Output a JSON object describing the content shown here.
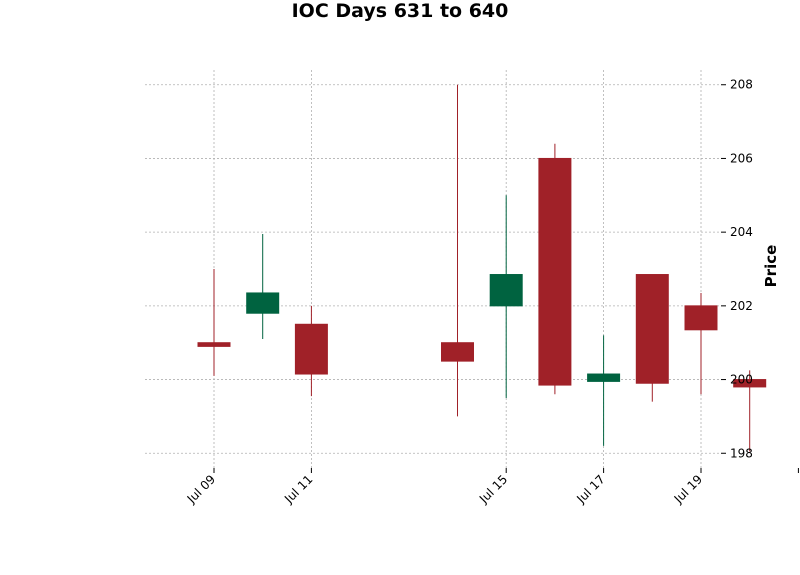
{
  "chart_data": {
    "type": "candlestick",
    "title": "IOC Days 631 to 640",
    "xlabel": "",
    "ylabel": "Price",
    "ylim": [
      197.6,
      208.4
    ],
    "y_ticks": [
      198,
      200,
      202,
      204,
      206,
      208
    ],
    "x_ticks": [
      {
        "label": "Jul 09",
        "date": "2023-07-09"
      },
      {
        "label": "Jul 11",
        "date": "2023-07-11"
      },
      {
        "label": "Jul 15",
        "date": "2023-07-15"
      },
      {
        "label": "Jul 17",
        "date": "2023-07-17"
      },
      {
        "label": "Jul 19",
        "date": "2023-07-19"
      },
      {
        "label": "",
        "date": "2023-07-21"
      }
    ],
    "grid": true,
    "y_axis_side": "right",
    "up_color": "#006340",
    "down_color": "#a02128",
    "grid_color": "#b0b0b0",
    "candles": [
      {
        "date": "2023-07-09",
        "open": 201.0,
        "high": 203.0,
        "low": 200.1,
        "close": 200.9
      },
      {
        "date": "2023-07-10",
        "open": 201.8,
        "high": 203.95,
        "low": 201.1,
        "close": 202.35
      },
      {
        "date": "2023-07-11",
        "open": 201.5,
        "high": 202.0,
        "low": 199.55,
        "close": 200.15
      },
      {
        "date": "2023-07-14",
        "open": 201.0,
        "high": 208.0,
        "low": 199.0,
        "close": 200.5
      },
      {
        "date": "2023-07-15",
        "open": 202.0,
        "high": 205.0,
        "low": 199.5,
        "close": 202.85
      },
      {
        "date": "2023-07-16",
        "open": 206.0,
        "high": 206.4,
        "low": 199.6,
        "close": 199.85
      },
      {
        "date": "2023-07-17",
        "open": 199.95,
        "high": 201.2,
        "low": 198.2,
        "close": 200.15
      },
      {
        "date": "2023-07-18",
        "open": 202.85,
        "high": 202.85,
        "low": 199.4,
        "close": 199.9
      },
      {
        "date": "2023-07-19",
        "open": 202.0,
        "high": 202.35,
        "low": 199.6,
        "close": 201.35
      },
      {
        "date": "2023-07-20",
        "open": 200.0,
        "high": 200.25,
        "low": 198.05,
        "close": 199.8
      }
    ]
  }
}
